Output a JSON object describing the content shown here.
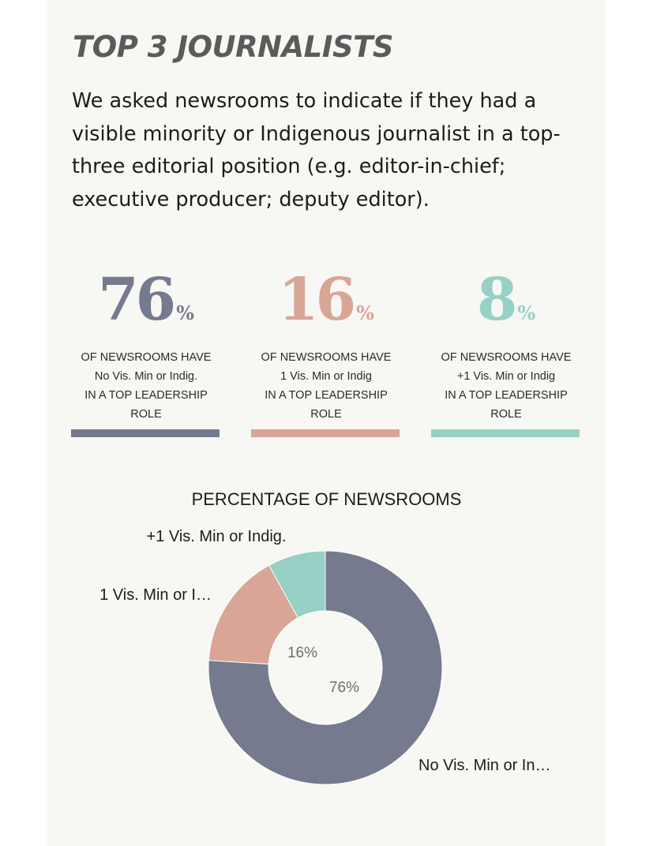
{
  "title": "TOP 3 JOURNALISTS",
  "intro": "We asked newsrooms to indicate if they had a visible minority or Indigenous journalist in a top-three editorial position (e.g. editor-in-chief; executive producer; deputy editor).",
  "stats": [
    {
      "value": "76",
      "unit": "%",
      "line1": "OF NEWSROOMS HAVE",
      "line2": "No Vis. Min or Indig.",
      "line3": "IN A TOP LEADERSHIP",
      "line4": "ROLE",
      "color": "#767a8f"
    },
    {
      "value": "16",
      "unit": "%",
      "line1": "OF NEWSROOMS HAVE",
      "line2": "1 Vis. Min or Indig",
      "line3": "IN A TOP LEADERSHIP",
      "line4": "ROLE",
      "color": "#d8a596"
    },
    {
      "value": "8",
      "unit": "%",
      "line1": "OF NEWSROOMS HAVE",
      "line2": "+1 Vis. Min or Indig",
      "line3": "IN A TOP LEADERSHIP",
      "line4": "ROLE",
      "color": "#97d0c4"
    }
  ],
  "chart_data": {
    "type": "pie",
    "title": "PERCENTAGE OF NEWSROOMS",
    "categories": [
      "No Vis. Min or In…",
      "1 Vis. Min or I…",
      "+1 Vis. Min or Indig."
    ],
    "values": [
      76,
      16,
      8
    ],
    "data_labels": [
      "76%",
      "16%",
      ""
    ],
    "colors": [
      "#767a8f",
      "#d8a596",
      "#97d0c4"
    ],
    "donut": true
  }
}
